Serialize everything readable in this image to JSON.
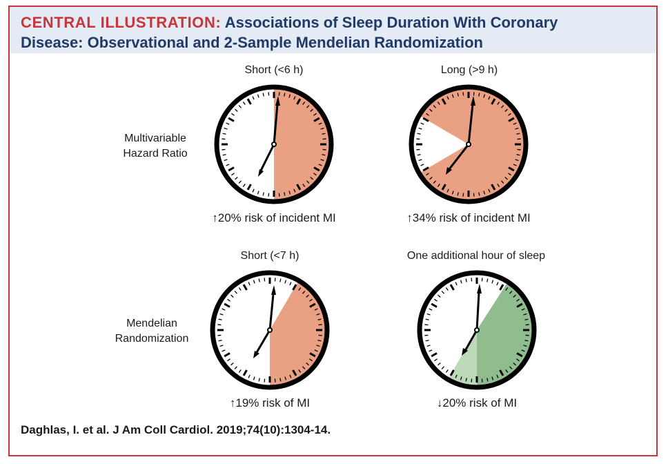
{
  "header": {
    "label": "CENTRAL ILLUSTRATION:",
    "title_line1": "Associations of Sleep Duration With Coronary",
    "title_line2": "Disease: Observational and 2-Sample Mendelian Randomization"
  },
  "rows": {
    "observational": {
      "label_line1": "Multivariable",
      "label_line2": "Hazard Ratio"
    },
    "mendelian": {
      "label_line1": "Mendelian",
      "label_line2": "Randomization"
    }
  },
  "panels": [
    {
      "title": "Short (<6 h)",
      "arrow": "↑",
      "risk": "20% risk of incident MI",
      "effect": "increase",
      "risk_change_percent": 20
    },
    {
      "title": "Long (>9 h)",
      "arrow": "↑",
      "risk": "34% risk of incident MI",
      "effect": "increase",
      "risk_change_percent": 34
    },
    {
      "title": "Short (<7 h)",
      "arrow": "↑",
      "risk": "19% risk of MI",
      "effect": "increase",
      "risk_change_percent": 19
    },
    {
      "title": "One additional hour of sleep",
      "arrow": "↓",
      "risk": "20% risk of MI",
      "effect": "decrease",
      "risk_change_percent": 20
    }
  ],
  "citation": "Daghlas, I. et al. J Am Coll Cardiol. 2019;74(10):1304-14.",
  "colors": {
    "accent_red": "#c8353b",
    "header_blue": "#1f3a66",
    "header_bg": "#e4ebf5",
    "risk_increase": "#eaa083",
    "risk_decrease_dark": "#8fbd8f",
    "risk_decrease_light": "#bcd9b8"
  }
}
